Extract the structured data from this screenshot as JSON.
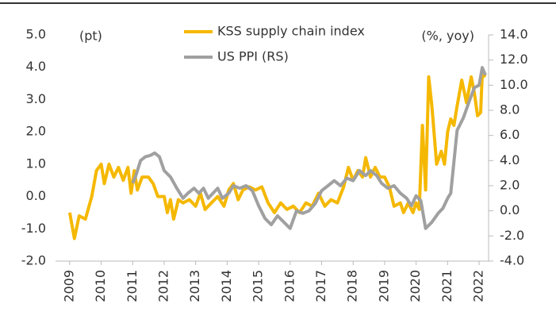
{
  "chart_data": {
    "type": "line",
    "y_label": "(pt)",
    "y2_label": "(%, yoy)",
    "legend": "top-center",
    "xlim": [
      2008.55,
      2022.2
    ],
    "xticks": [
      2009,
      2010,
      2011,
      2012,
      2013,
      2014,
      2015,
      2016,
      2017,
      2018,
      2019,
      2020,
      2021,
      2022
    ],
    "ylim": [
      -2,
      5
    ],
    "yticks": [
      {
        "value": -2,
        "label": "-2.0"
      },
      {
        "value": -1,
        "label": "-1.0"
      },
      {
        "value": 0,
        "label": "0.0"
      },
      {
        "value": 1,
        "label": "1.0"
      },
      {
        "value": 2,
        "label": "2.0"
      },
      {
        "value": 3,
        "label": "3.0"
      },
      {
        "value": 4,
        "label": "4.0"
      },
      {
        "value": 5,
        "label": "5.0"
      }
    ],
    "y2lim": [
      -4,
      14
    ],
    "y2ticks": [
      {
        "value": -4,
        "label": "-4.0"
      },
      {
        "value": -2,
        "label": "-2.0"
      },
      {
        "value": 0,
        "label": "0.0"
      },
      {
        "value": 2,
        "label": "2.0"
      },
      {
        "value": 4,
        "label": "4.0"
      },
      {
        "value": 6,
        "label": "6.0"
      },
      {
        "value": 8,
        "label": "8.0"
      },
      {
        "value": 10,
        "label": "10.0"
      },
      {
        "value": 12,
        "label": "12.0"
      },
      {
        "value": 14,
        "label": "14.0"
      }
    ],
    "series": [
      {
        "name": "KSS supply chain index",
        "color": "#f5b800",
        "x": [
          2009.0,
          2009.15,
          2009.3,
          2009.5,
          2009.7,
          2009.85,
          2010.0,
          2010.1,
          2010.25,
          2010.4,
          2010.55,
          2010.7,
          2010.85,
          2010.95,
          2011.05,
          2011.15,
          2011.3,
          2011.5,
          2011.65,
          2011.8,
          2012.0,
          2012.1,
          2012.2,
          2012.3,
          2012.45,
          2012.6,
          2012.8,
          2013.0,
          2013.15,
          2013.3,
          2013.5,
          2013.7,
          2013.9,
          2014.05,
          2014.2,
          2014.35,
          2014.5,
          2014.7,
          2014.9,
          2015.1,
          2015.3,
          2015.5,
          2015.7,
          2015.9,
          2016.1,
          2016.3,
          2016.5,
          2016.7,
          2016.9,
          2017.1,
          2017.3,
          2017.5,
          2017.7,
          2017.85,
          2018.0,
          2018.15,
          2018.3,
          2018.4,
          2018.55,
          2018.7,
          2018.85,
          2019.0,
          2019.15,
          2019.3,
          2019.5,
          2019.6,
          2019.75,
          2019.9,
          2020.0,
          2020.1,
          2020.2,
          2020.3,
          2020.4,
          2020.5,
          2020.65,
          2020.8,
          2020.9,
          2021.0,
          2021.1,
          2021.2,
          2021.3,
          2021.45,
          2021.6,
          2021.75,
          2021.85,
          2021.95,
          2022.05,
          2022.1,
          2022.2
        ],
        "values": [
          -0.5,
          -1.3,
          -0.6,
          -0.7,
          0.0,
          0.8,
          1.0,
          0.4,
          1.0,
          0.6,
          0.9,
          0.5,
          0.9,
          0.1,
          0.8,
          0.2,
          0.6,
          0.6,
          0.4,
          0.0,
          0.0,
          -0.5,
          -0.1,
          -0.7,
          -0.1,
          -0.2,
          -0.1,
          -0.3,
          0.1,
          -0.4,
          -0.2,
          0.0,
          -0.3,
          0.2,
          0.4,
          -0.1,
          0.2,
          0.3,
          0.2,
          0.3,
          -0.2,
          -0.5,
          -0.2,
          -0.4,
          -0.3,
          -0.5,
          -0.2,
          -0.3,
          0.1,
          -0.3,
          -0.1,
          -0.2,
          0.3,
          0.9,
          0.5,
          0.8,
          0.6,
          1.2,
          0.6,
          0.9,
          0.6,
          0.6,
          0.3,
          -0.3,
          -0.2,
          -0.5,
          -0.2,
          -0.5,
          -0.2,
          -0.4,
          2.2,
          0.2,
          3.7,
          2.8,
          1.0,
          1.4,
          1.0,
          2.0,
          2.4,
          2.2,
          2.8,
          3.6,
          2.9,
          3.7,
          3.2,
          2.5,
          2.6,
          3.8,
          3.7
        ]
      },
      {
        "name": "US PPI (RS)",
        "color": "#a0a0a0",
        "axis": "y2",
        "x": [
          2011.0,
          2011.1,
          2011.25,
          2011.4,
          2011.55,
          2011.7,
          2011.85,
          2012.0,
          2012.2,
          2012.4,
          2012.6,
          2012.75,
          2012.95,
          2013.1,
          2013.25,
          2013.4,
          2013.55,
          2013.7,
          2013.85,
          2014.05,
          2014.2,
          2014.4,
          2014.6,
          2014.8,
          2015.0,
          2015.2,
          2015.4,
          2015.6,
          2015.8,
          2016.0,
          2016.2,
          2016.4,
          2016.6,
          2016.8,
          2017.0,
          2017.2,
          2017.4,
          2017.6,
          2017.8,
          2018.0,
          2018.2,
          2018.4,
          2018.55,
          2018.75,
          2018.9,
          2019.1,
          2019.3,
          2019.5,
          2019.7,
          2019.85,
          2020.0,
          2020.15,
          2020.3,
          2020.5,
          2020.7,
          2020.85,
          2021.0,
          2021.1,
          2021.3,
          2021.5,
          2021.7,
          2021.85,
          2022.0,
          2022.1,
          2022.2
        ],
        "values": [
          2.2,
          2.8,
          4.0,
          4.3,
          4.4,
          4.6,
          4.3,
          3.2,
          2.7,
          1.8,
          1.0,
          1.4,
          1.8,
          1.4,
          1.8,
          1.0,
          1.4,
          1.8,
          1.0,
          1.4,
          2.0,
          1.8,
          2.0,
          1.6,
          0.4,
          -0.6,
          -1.1,
          -0.4,
          -0.9,
          -1.4,
          0.0,
          -0.2,
          0.0,
          0.6,
          1.6,
          2.0,
          2.4,
          2.0,
          2.6,
          2.4,
          3.2,
          2.8,
          3.2,
          2.8,
          2.2,
          1.8,
          2.0,
          1.4,
          1.0,
          0.4,
          1.2,
          0.8,
          -1.4,
          -0.9,
          -0.2,
          0.2,
          1.0,
          1.4,
          6.4,
          7.4,
          8.8,
          9.8,
          10.0,
          11.4,
          10.8
        ]
      }
    ]
  }
}
